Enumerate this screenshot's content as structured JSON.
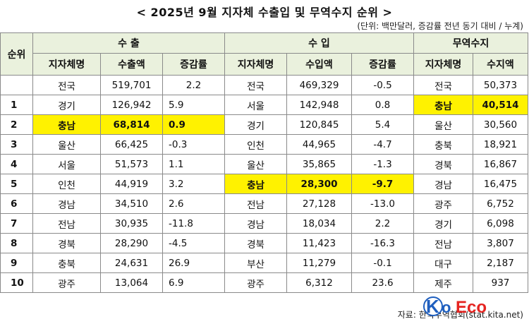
{
  "title": "< 2025년 9월 지자체 수출입 및 무역수지 순위 >",
  "unit_note": "(단위: 백만달러, 증감률 전년 동기 대비 / 누계)",
  "headers": {
    "rank": "순위",
    "export_group": "수 출",
    "import_group": "수 입",
    "balance_group": "무역수지",
    "region": "지자체명",
    "export_amount": "수출액",
    "change_rate": "증감률",
    "import_amount": "수입액",
    "balance_amount": "수지액"
  },
  "rows": [
    {
      "rank": "",
      "ex_name": "전국",
      "ex_val": "519,701",
      "ex_chg": "2.2",
      "im_name": "전국",
      "im_val": "469,329",
      "im_chg": "-0.5",
      "bal_name": "전국",
      "bal_val": "50,373"
    },
    {
      "rank": "1",
      "ex_name": "경기",
      "ex_val": "126,942",
      "ex_chg": "5.9",
      "im_name": "서울",
      "im_val": "142,948",
      "im_chg": "0.8",
      "bal_name": "충남",
      "bal_val": "40,514"
    },
    {
      "rank": "2",
      "ex_name": "충남",
      "ex_val": "68,814",
      "ex_chg": "0.9",
      "im_name": "경기",
      "im_val": "120,845",
      "im_chg": "5.4",
      "bal_name": "울산",
      "bal_val": "30,560"
    },
    {
      "rank": "3",
      "ex_name": "울산",
      "ex_val": "66,425",
      "ex_chg": "-0.3",
      "im_name": "인천",
      "im_val": "44,965",
      "im_chg": "-4.7",
      "bal_name": "충북",
      "bal_val": "18,921"
    },
    {
      "rank": "4",
      "ex_name": "서울",
      "ex_val": "51,573",
      "ex_chg": "1.1",
      "im_name": "울산",
      "im_val": "35,865",
      "im_chg": "-1.3",
      "bal_name": "경북",
      "bal_val": "16,867"
    },
    {
      "rank": "5",
      "ex_name": "인천",
      "ex_val": "44,919",
      "ex_chg": "3.2",
      "im_name": "충남",
      "im_val": "28,300",
      "im_chg": "-9.7",
      "bal_name": "경남",
      "bal_val": "16,475"
    },
    {
      "rank": "6",
      "ex_name": "경남",
      "ex_val": "34,510",
      "ex_chg": "2.6",
      "im_name": "전남",
      "im_val": "27,128",
      "im_chg": "-13.0",
      "bal_name": "광주",
      "bal_val": "6,752"
    },
    {
      "rank": "7",
      "ex_name": "전남",
      "ex_val": "30,935",
      "ex_chg": "-11.8",
      "im_name": "경남",
      "im_val": "18,034",
      "im_chg": "2.2",
      "bal_name": "경기",
      "bal_val": "6,098"
    },
    {
      "rank": "8",
      "ex_name": "경북",
      "ex_val": "28,290",
      "ex_chg": "-4.5",
      "im_name": "경북",
      "im_val": "11,423",
      "im_chg": "-16.3",
      "bal_name": "전남",
      "bal_val": "3,807"
    },
    {
      "rank": "9",
      "ex_name": "충북",
      "ex_val": "24,631",
      "ex_chg": "26.9",
      "im_name": "부산",
      "im_val": "11,279",
      "im_chg": "-0.1",
      "bal_name": "대구",
      "bal_val": "2,187"
    },
    {
      "rank": "10",
      "ex_name": "광주",
      "ex_val": "13,064",
      "ex_chg": "6.9",
      "im_name": "광주",
      "im_val": "6,312",
      "im_chg": "23.6",
      "bal_name": "제주",
      "bal_val": "937"
    }
  ],
  "source": "자료: 한국무역협회(stat.kita.net)",
  "logo_text": "KoEco",
  "colors": {
    "highlight": "#fff200",
    "header_bg": "#eaf1dd",
    "logo_blue": "#1f5fbf",
    "logo_red": "#e52421"
  }
}
